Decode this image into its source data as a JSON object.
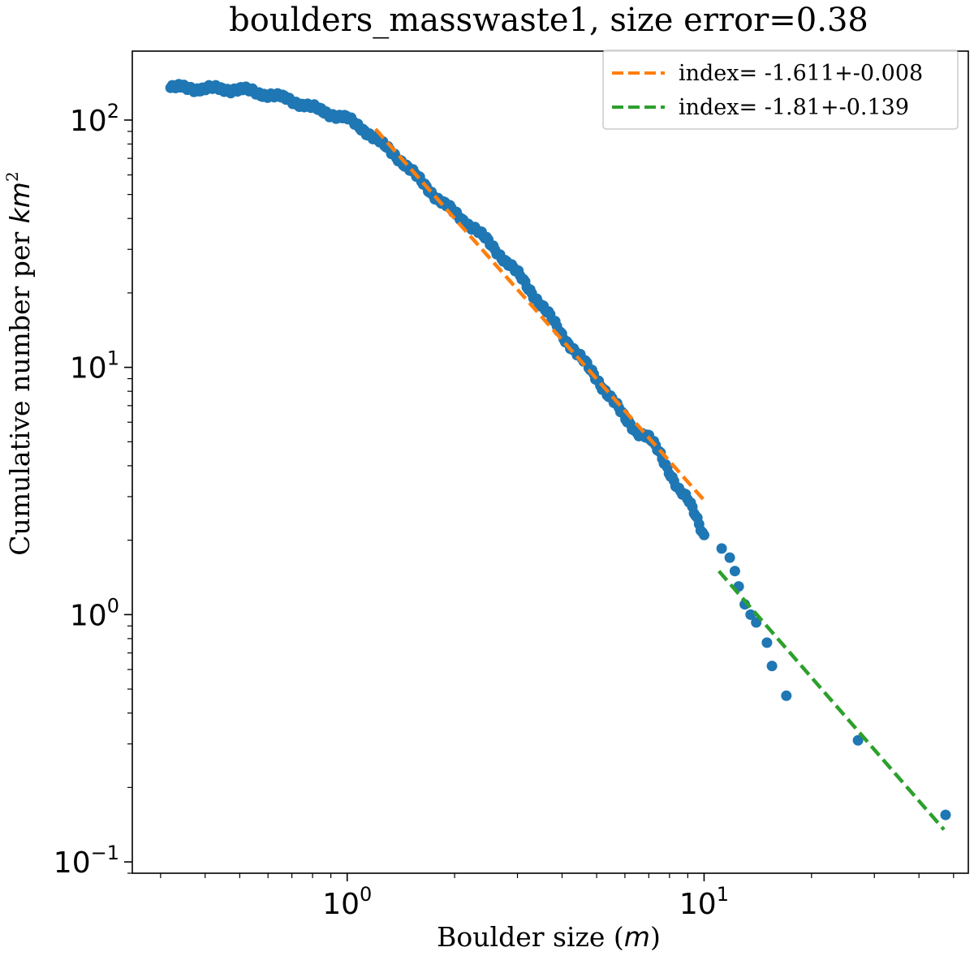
{
  "chart_data": {
    "type": "scatter",
    "title": "boulders_masswaste1, size error=0.38",
    "xlabel_text": "Boulder size (",
    "xlabel_unit": "m",
    "xlabel_close": ")",
    "ylabel_text": "Cumulative number per ",
    "ylabel_unit": "km",
    "ylabel_exp": "2",
    "x_scale": "log",
    "y_scale": "log",
    "xlim": [
      0.25,
      55
    ],
    "ylim": [
      0.09,
      190
    ],
    "grid": false,
    "legend_position": "top-right",
    "x_ticks": [
      {
        "value": 1,
        "base": "10",
        "exp": "0"
      },
      {
        "value": 10,
        "base": "10",
        "exp": "1"
      }
    ],
    "y_ticks": [
      {
        "value": 0.1,
        "base": "10",
        "exp": "−1"
      },
      {
        "value": 1,
        "base": "10",
        "exp": "0"
      },
      {
        "value": 10,
        "base": "10",
        "exp": "1"
      },
      {
        "value": 100,
        "base": "10",
        "exp": "2"
      }
    ],
    "colors": {
      "points": "#1f77b4",
      "fit1": "#ff7f0e",
      "fit2": "#2ca02c"
    },
    "fits": [
      {
        "label": "index= -1.611+-0.008",
        "x": [
          1.2,
          10.0
        ],
        "y": [
          92,
          2.9
        ],
        "color": "#ff7f0e"
      },
      {
        "label": "index= -1.81+-0.139",
        "x": [
          11.0,
          47.0
        ],
        "y": [
          1.5,
          0.135
        ],
        "color": "#2ca02c"
      }
    ],
    "scatter_anchor_x": [
      0.32,
      0.35,
      0.4,
      0.5,
      0.6,
      0.7,
      0.8,
      0.9,
      1.0,
      1.1,
      1.2,
      1.4,
      1.6,
      1.8,
      2.0,
      2.3,
      2.6,
      3.0,
      3.3,
      3.6,
      4.0,
      4.5,
      5.0,
      5.5,
      6.0,
      6.5,
      7.0,
      7.5,
      8.0,
      8.5,
      9.0,
      9.5,
      10.0
    ],
    "scatter_anchor_y": [
      135,
      135,
      134,
      133,
      127,
      120,
      112,
      106,
      101,
      93,
      84,
      70,
      57,
      48,
      42,
      36,
      30,
      24,
      20,
      17,
      13.5,
      11,
      9,
      7.5,
      6.2,
      5.5,
      5.2,
      4.5,
      3.8,
      3.2,
      2.9,
      2.5,
      2.1
    ],
    "scatter_tail_x": [
      11.2,
      11.8,
      12.2,
      12.5,
      13.0,
      13.5,
      14.0,
      15.0,
      15.5,
      17.0,
      27.0,
      47.5
    ],
    "scatter_tail_y": [
      1.85,
      1.7,
      1.5,
      1.3,
      1.1,
      1.0,
      0.93,
      0.77,
      0.62,
      0.47,
      0.31,
      0.155
    ]
  }
}
